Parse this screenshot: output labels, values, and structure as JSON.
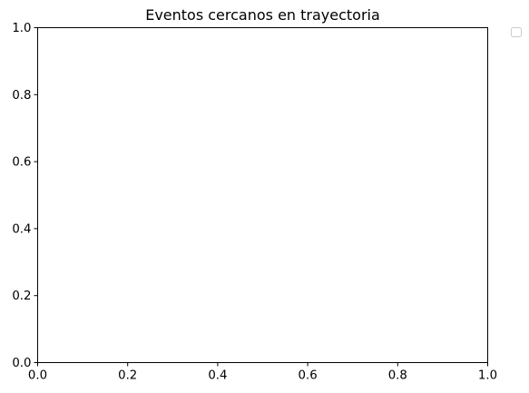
{
  "chart_data": {
    "type": "scatter",
    "title": "Eventos cercanos en trayectoria",
    "xlabel": "",
    "ylabel": "",
    "xlim": [
      0,
      1
    ],
    "ylim": [
      0,
      1
    ],
    "xticks": [
      0.0,
      0.2,
      0.4,
      0.6,
      0.8,
      1.0
    ],
    "yticks": [
      0.0,
      0.2,
      0.4,
      0.6,
      0.8,
      1.0
    ],
    "xtick_labels": [
      "0.0",
      "0.2",
      "0.4",
      "0.6",
      "0.8",
      "1.0"
    ],
    "ytick_labels": [
      "0.0",
      "0.2",
      "0.4",
      "0.6",
      "0.8",
      "1.0"
    ],
    "series": [],
    "grid": false,
    "legend": {
      "placement": "outside-top-right",
      "entries": []
    }
  },
  "colors": {
    "axes": "#000000",
    "background": "#ffffff",
    "legend_border": "#cccccc"
  }
}
